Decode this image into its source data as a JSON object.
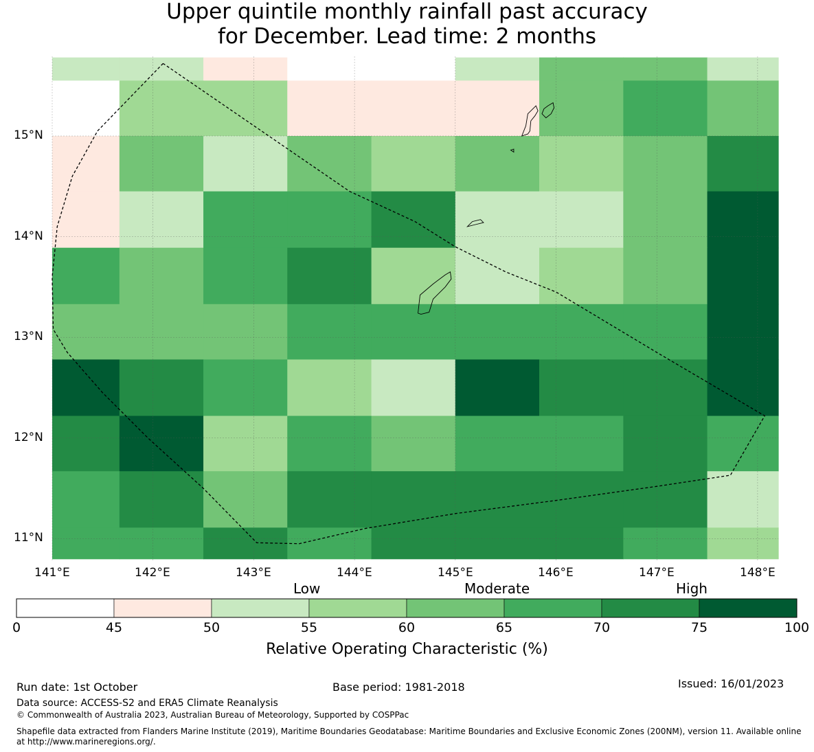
{
  "title": {
    "line1": "Upper quintile monthly rainfall past accuracy",
    "line2": "for December. Lead time: 2 months"
  },
  "map": {
    "lat_labels": [
      "15°N",
      "14°N",
      "13°N",
      "12°N",
      "11°N"
    ],
    "lon_labels": [
      "141°E",
      "142°E",
      "143°E",
      "144°E",
      "145°E",
      "146°E",
      "147°E",
      "148°E"
    ],
    "grid_columns": [
      {
        "west": 141.0,
        "east": 141.667
      },
      {
        "west": 141.667,
        "east": 142.5
      },
      {
        "west": 142.5,
        "east": 143.333
      },
      {
        "west": 143.333,
        "east": 144.167
      },
      {
        "west": 144.167,
        "east": 145.0
      },
      {
        "west": 145.0,
        "east": 145.833
      },
      {
        "west": 145.833,
        "east": 146.667
      },
      {
        "west": 146.667,
        "east": 147.5
      },
      {
        "west": 147.5,
        "east": 148.22
      }
    ],
    "grid_rows_north_to_south": [
      {
        "north": 15.78,
        "south": 15.55
      },
      {
        "north": 15.55,
        "south": 15.0
      },
      {
        "north": 15.0,
        "south": 14.45
      },
      {
        "north": 14.45,
        "south": 13.89
      },
      {
        "north": 13.89,
        "south": 13.33
      },
      {
        "north": 13.33,
        "south": 12.78
      },
      {
        "north": 12.78,
        "south": 12.22
      },
      {
        "north": 12.22,
        "south": 11.67
      },
      {
        "north": 11.67,
        "south": 11.11
      },
      {
        "north": 11.11,
        "south": 10.8
      }
    ],
    "cell_classes_north_to_south": [
      [
        2,
        2,
        1,
        0,
        0,
        2,
        4,
        4,
        2
      ],
      [
        0,
        3,
        3,
        1,
        1,
        1,
        4,
        5,
        4
      ],
      [
        1,
        4,
        2,
        4,
        3,
        4,
        3,
        4,
        6
      ],
      [
        1,
        2,
        5,
        5,
        6,
        2,
        2,
        4,
        7
      ],
      [
        5,
        4,
        5,
        6,
        3,
        2,
        3,
        4,
        7
      ],
      [
        4,
        4,
        4,
        5,
        5,
        5,
        5,
        5,
        7
      ],
      [
        7,
        6,
        5,
        3,
        2,
        7,
        6,
        6,
        7
      ],
      [
        6,
        7,
        3,
        5,
        4,
        5,
        5,
        6,
        5
      ],
      [
        5,
        6,
        4,
        6,
        6,
        6,
        6,
        6,
        2
      ],
      [
        5,
        5,
        6,
        5,
        6,
        6,
        6,
        5,
        3
      ]
    ],
    "eez_boundary_lonlat": [
      [
        142.1,
        15.72
      ],
      [
        141.45,
        15.05
      ],
      [
        141.2,
        14.6
      ],
      [
        141.05,
        14.1
      ],
      [
        141.0,
        13.6
      ],
      [
        141.01,
        13.08
      ],
      [
        141.15,
        12.85
      ],
      [
        141.5,
        12.45
      ],
      [
        141.95,
        12.0
      ],
      [
        142.5,
        11.5
      ],
      [
        143.03,
        10.96
      ],
      [
        143.45,
        10.95
      ],
      [
        144.1,
        11.1
      ],
      [
        145.0,
        11.25
      ],
      [
        146.0,
        11.38
      ],
      [
        147.0,
        11.52
      ],
      [
        147.73,
        11.63
      ],
      [
        148.07,
        12.22
      ],
      [
        147.0,
        12.85
      ],
      [
        146.0,
        13.45
      ],
      [
        145.5,
        13.65
      ],
      [
        145.0,
        13.9
      ],
      [
        144.6,
        14.15
      ],
      [
        143.95,
        14.45
      ],
      [
        142.1,
        15.72
      ]
    ],
    "islands_lonlat": [
      [
        [
          145.66,
          15.0
        ],
        [
          145.7,
          15.1
        ],
        [
          145.72,
          15.22
        ],
        [
          145.77,
          15.27
        ],
        [
          145.8,
          15.3
        ],
        [
          145.82,
          15.25
        ],
        [
          145.79,
          15.2
        ],
        [
          145.75,
          15.15
        ],
        [
          145.74,
          15.05
        ],
        [
          145.72,
          15.02
        ],
        [
          145.66,
          15.0
        ]
      ],
      [
        [
          145.86,
          15.22
        ],
        [
          145.88,
          15.27
        ],
        [
          145.92,
          15.3
        ],
        [
          145.97,
          15.33
        ],
        [
          145.98,
          15.28
        ],
        [
          145.95,
          15.22
        ],
        [
          145.9,
          15.18
        ],
        [
          145.86,
          15.22
        ]
      ],
      [
        [
          145.55,
          14.86
        ],
        [
          145.58,
          14.87
        ],
        [
          145.58,
          14.84
        ],
        [
          145.55,
          14.86
        ]
      ],
      [
        [
          145.12,
          14.1
        ],
        [
          145.17,
          14.15
        ],
        [
          145.25,
          14.17
        ],
        [
          145.28,
          14.14
        ],
        [
          145.2,
          14.12
        ],
        [
          145.12,
          14.1
        ]
      ],
      [
        [
          144.63,
          13.24
        ],
        [
          144.65,
          13.42
        ],
        [
          144.78,
          13.53
        ],
        [
          144.9,
          13.62
        ],
        [
          144.95,
          13.65
        ],
        [
          144.96,
          13.58
        ],
        [
          144.9,
          13.5
        ],
        [
          144.78,
          13.38
        ],
        [
          144.74,
          13.25
        ],
        [
          144.66,
          13.23
        ],
        [
          144.63,
          13.24
        ]
      ]
    ]
  },
  "colorbar": {
    "colors": [
      "#ffffff",
      "#fee9e0",
      "#c8e9c1",
      "#a0d994",
      "#73c476",
      "#41ab5d",
      "#238b45",
      "#005a32"
    ],
    "ticks": [
      "0",
      "45",
      "50",
      "55",
      "60",
      "65",
      "70",
      "75",
      "100"
    ],
    "category_low": "Low",
    "category_moderate": "Moderate",
    "category_high": "High",
    "label": "Relative Operating Characteristic (%)"
  },
  "footer": {
    "run_date": "Run date: 1st October",
    "base_period": "Base period: 1981-2018",
    "issued": "Issued: 16/01/2023",
    "data_source": "Data source: ACCESS-S2 and ERA5 Climate Reanalysis",
    "copyright": "© Commonwealth of Australia 2023, Australian Bureau of Meteorology, Supported by COSPPac",
    "shapefile": "Shapefile data extracted from Flanders Marine Institute (2019), Maritime Boundaries Geodatabase: Maritime Boundaries and Exclusive Economic Zones (200NM), version 11. Available online at http://www.marineregions.org/."
  }
}
